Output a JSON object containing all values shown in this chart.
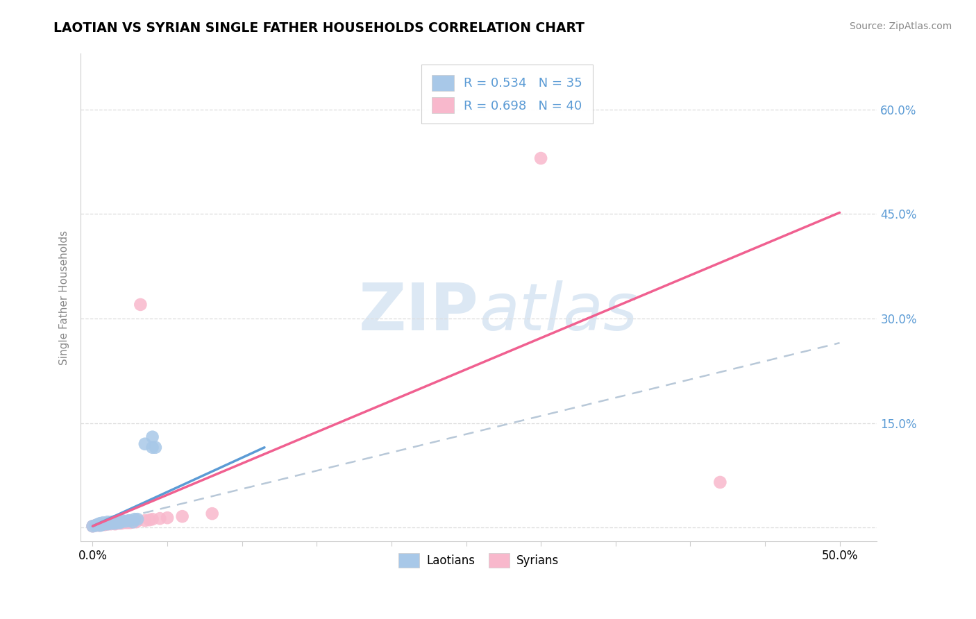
{
  "title": "LAOTIAN VS SYRIAN SINGLE FATHER HOUSEHOLDS CORRELATION CHART",
  "source": "Source: ZipAtlas.com",
  "ylabel": "Single Father Households",
  "x_ticks": [
    0.0,
    0.05,
    0.1,
    0.15,
    0.2,
    0.25,
    0.3,
    0.35,
    0.4,
    0.45,
    0.5
  ],
  "y_ticks": [
    0.0,
    0.15,
    0.3,
    0.45,
    0.6
  ],
  "y_tick_labels": [
    "",
    "15.0%",
    "30.0%",
    "45.0%",
    "60.0%"
  ],
  "xlim": [
    -0.008,
    0.525
  ],
  "ylim": [
    -0.02,
    0.68
  ],
  "legend_r1": "R = 0.534   N = 35",
  "legend_r2": "R = 0.698   N = 40",
  "laotian_color": "#a8c8e8",
  "syrian_color": "#f8b8cc",
  "laotian_line_color": "#5b9bd5",
  "syrian_line_color": "#f06090",
  "dashed_line_color": "#b8c8d8",
  "watermark_color": "#d8e4f0",
  "laotian_points_x": [
    0.0,
    0.002,
    0.003,
    0.004,
    0.005,
    0.005,
    0.006,
    0.007,
    0.007,
    0.008,
    0.009,
    0.01,
    0.01,
    0.011,
    0.012,
    0.013,
    0.013,
    0.014,
    0.015,
    0.015,
    0.016,
    0.017,
    0.018,
    0.019,
    0.02,
    0.022,
    0.024,
    0.025,
    0.027,
    0.028,
    0.03,
    0.035,
    0.04,
    0.04,
    0.042
  ],
  "laotian_points_y": [
    0.002,
    0.003,
    0.004,
    0.005,
    0.003,
    0.006,
    0.004,
    0.005,
    0.007,
    0.005,
    0.006,
    0.005,
    0.008,
    0.006,
    0.007,
    0.006,
    0.008,
    0.007,
    0.006,
    0.009,
    0.008,
    0.009,
    0.007,
    0.008,
    0.01,
    0.009,
    0.01,
    0.01,
    0.008,
    0.012,
    0.012,
    0.12,
    0.115,
    0.13,
    0.115
  ],
  "syrian_points_x": [
    0.0,
    0.002,
    0.003,
    0.004,
    0.005,
    0.006,
    0.007,
    0.008,
    0.009,
    0.01,
    0.011,
    0.012,
    0.013,
    0.014,
    0.015,
    0.016,
    0.017,
    0.018,
    0.019,
    0.02,
    0.021,
    0.022,
    0.023,
    0.024,
    0.025,
    0.026,
    0.027,
    0.028,
    0.029,
    0.03,
    0.032,
    0.035,
    0.038,
    0.04,
    0.045,
    0.05,
    0.06,
    0.08,
    0.3,
    0.42
  ],
  "syrian_points_y": [
    0.002,
    0.003,
    0.004,
    0.003,
    0.005,
    0.004,
    0.005,
    0.004,
    0.006,
    0.005,
    0.006,
    0.005,
    0.007,
    0.006,
    0.005,
    0.007,
    0.006,
    0.007,
    0.006,
    0.008,
    0.007,
    0.008,
    0.007,
    0.008,
    0.007,
    0.009,
    0.008,
    0.009,
    0.008,
    0.01,
    0.32,
    0.01,
    0.011,
    0.012,
    0.013,
    0.014,
    0.016,
    0.02,
    0.53,
    0.065
  ],
  "lao_line_x0": 0.0,
  "lao_line_x1": 0.115,
  "lao_line_y0": 0.002,
  "lao_line_y1": 0.115,
  "syr_line_x0": 0.0,
  "syr_line_x1": 0.5,
  "syr_line_y0": 0.002,
  "syr_line_y1": 0.452,
  "dash_line_x0": 0.0,
  "dash_line_x1": 0.5,
  "dash_line_y0": 0.003,
  "dash_line_y1": 0.265
}
